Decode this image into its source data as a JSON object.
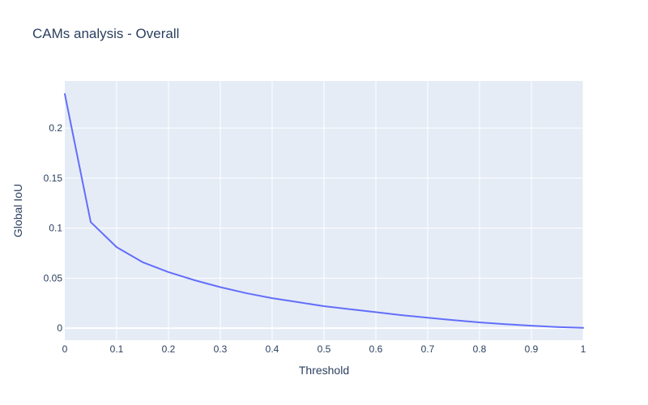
{
  "chart_data": {
    "type": "line",
    "title": "CAMs analysis - Overall",
    "xlabel": "Threshold",
    "ylabel": "Global IoU",
    "xlim": [
      0,
      1
    ],
    "ylim": [
      -0.012,
      0.247
    ],
    "x_ticks": [
      0,
      0.1,
      0.2,
      0.3,
      0.4,
      0.5,
      0.6,
      0.7,
      0.8,
      0.9,
      1
    ],
    "x_tick_labels": [
      "0",
      "0.1",
      "0.2",
      "0.3",
      "0.4",
      "0.5",
      "0.6",
      "0.7",
      "0.8",
      "0.9",
      "1"
    ],
    "y_ticks": [
      0,
      0.05,
      0.1,
      0.15,
      0.2
    ],
    "y_tick_labels": [
      "0",
      "0.05",
      "0.1",
      "0.15",
      "0.2"
    ],
    "grid": true,
    "background_color": "#e5ecf6",
    "series": [
      {
        "color": "#636efa",
        "x": [
          0,
          0.05,
          0.1,
          0.15,
          0.2,
          0.25,
          0.3,
          0.35,
          0.4,
          0.45,
          0.5,
          0.55,
          0.6,
          0.65,
          0.7,
          0.75,
          0.8,
          0.85,
          0.9,
          0.95,
          1
        ],
        "y": [
          0.234,
          0.106,
          0.081,
          0.066,
          0.056,
          0.048,
          0.041,
          0.035,
          0.03,
          0.026,
          0.022,
          0.019,
          0.016,
          0.013,
          0.0105,
          0.008,
          0.0058,
          0.004,
          0.0025,
          0.0012,
          0.0003
        ]
      }
    ]
  }
}
